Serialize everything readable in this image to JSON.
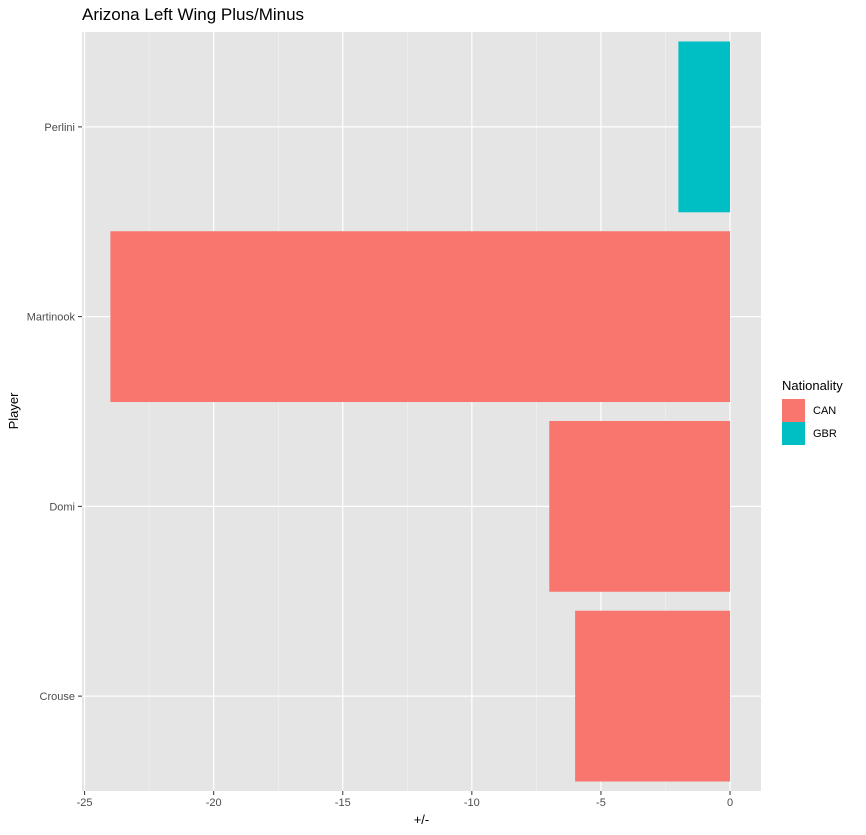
{
  "chart_data": {
    "type": "bar",
    "orientation": "horizontal",
    "title": "Arizona Left Wing Plus/Minus",
    "xlabel": "+/-",
    "ylabel": "Player",
    "categories": [
      "Crouse",
      "Domi",
      "Martinook",
      "Perlini"
    ],
    "values": [
      -6,
      -7,
      -24,
      -2
    ],
    "groups": [
      "CAN",
      "CAN",
      "CAN",
      "GBR"
    ],
    "xlim": [
      -25.1,
      1.2
    ],
    "xticks": [
      -25,
      -20,
      -15,
      -10,
      -5,
      0
    ],
    "xtick_labels": [
      "-25",
      "-20",
      "-15",
      "-10",
      "-5",
      "0"
    ],
    "grid": true,
    "legend": {
      "title": "Nationality",
      "position": "right",
      "entries": [
        {
          "label": "CAN",
          "color": "#F8766D"
        },
        {
          "label": "GBR",
          "color": "#00BFC4"
        }
      ]
    }
  },
  "colors": {
    "panel_bg": "#E5E5E5",
    "grid_major": "#FFFFFF",
    "CAN": "#F8766D",
    "GBR": "#00BFC4"
  }
}
